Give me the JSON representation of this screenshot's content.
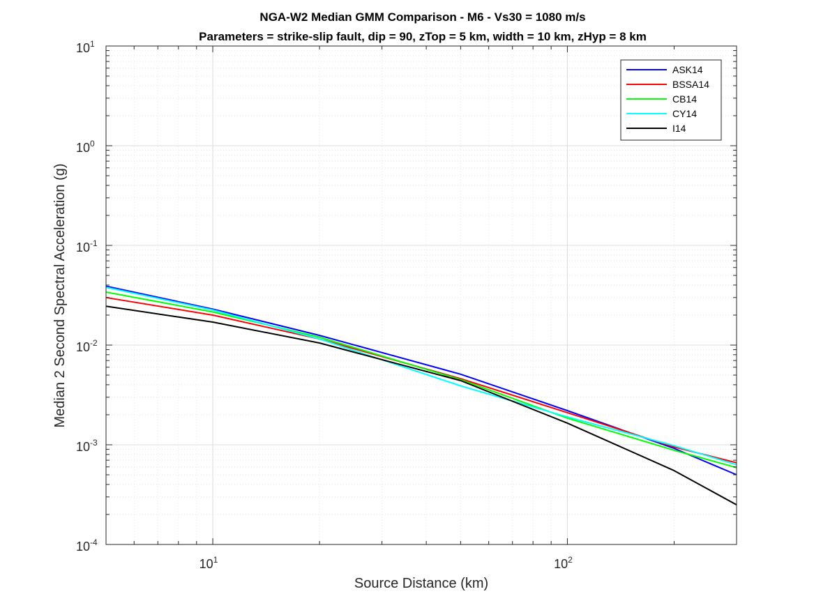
{
  "chart_data": {
    "type": "line",
    "title": "NGA-W2 Median GMM Comparison - M6 - Vs30 = 1080 m/s",
    "subtitle": "Parameters = strike-slip fault, dip = 90, zTop = 5 km, width = 10 km, zHyp = 8 km",
    "xlabel": "Source Distance (km)",
    "ylabel": "Median 2 Second Spectral Acceleration (g)",
    "xscale": "log",
    "yscale": "log",
    "xlim": [
      5,
      300
    ],
    "ylim": [
      0.0001,
      10
    ],
    "grid": true,
    "legend_position": "top-right",
    "x_ticks": [
      {
        "base": "10",
        "exp": "1",
        "value": 10
      },
      {
        "base": "10",
        "exp": "2",
        "value": 100
      }
    ],
    "y_ticks": [
      {
        "base": "10",
        "exp": "1",
        "value": 10
      },
      {
        "base": "10",
        "exp": "0",
        "value": 1
      },
      {
        "base": "10",
        "exp": "-1",
        "value": 0.1
      },
      {
        "base": "10",
        "exp": "-2",
        "value": 0.01
      },
      {
        "base": "10",
        "exp": "-3",
        "value": 0.001
      },
      {
        "base": "10",
        "exp": "-4",
        "value": 0.0001
      }
    ],
    "series": [
      {
        "name": "ASK14",
        "color": "#0000ff",
        "x": [
          5,
          10,
          20,
          50,
          100,
          200,
          300
        ],
        "y": [
          0.039,
          0.023,
          0.0125,
          0.0051,
          0.0022,
          0.00092,
          0.0005
        ]
      },
      {
        "name": "BSSA14",
        "color": "#ff0000",
        "x": [
          5,
          10,
          20,
          50,
          100,
          200,
          300
        ],
        "y": [
          0.03,
          0.02,
          0.0115,
          0.0046,
          0.0021,
          0.00095,
          0.00066
        ]
      },
      {
        "name": "CB14",
        "color": "#00ff00",
        "x": [
          5,
          10,
          20,
          50,
          100,
          200,
          300
        ],
        "y": [
          0.034,
          0.0215,
          0.012,
          0.0045,
          0.00185,
          0.00088,
          0.00059
        ]
      },
      {
        "name": "CY14",
        "color": "#00ffff",
        "x": [
          5,
          10,
          20,
          50,
          100,
          200,
          300
        ],
        "y": [
          0.038,
          0.0225,
          0.0115,
          0.0039,
          0.0019,
          0.00098,
          0.00063
        ]
      },
      {
        "name": "I14",
        "color": "#000000",
        "x": [
          5,
          10,
          20,
          50,
          100,
          200,
          300
        ],
        "y": [
          0.0245,
          0.017,
          0.0105,
          0.0044,
          0.00165,
          0.00055,
          0.00025
        ]
      }
    ]
  }
}
